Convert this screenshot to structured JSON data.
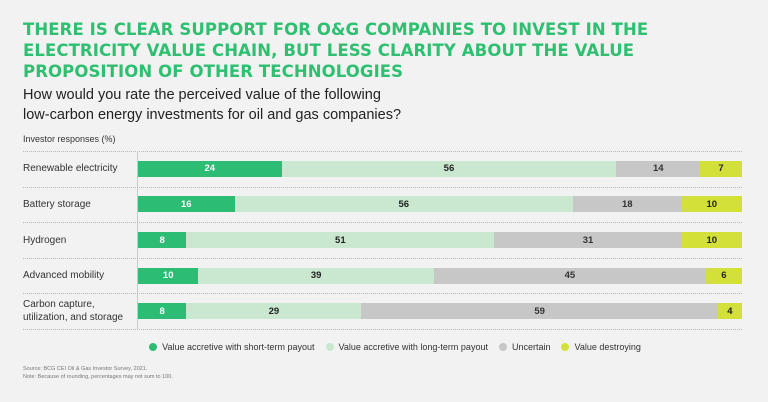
{
  "title_lines": [
    "THERE IS CLEAR SUPPORT FOR O&G COMPANIES TO INVEST IN THE",
    "ELECTRICITY VALUE CHAIN, BUT LESS CLARITY ABOUT THE VALUE",
    "PROPOSITION OF OTHER TECHNOLOGIES"
  ],
  "subtitle_lines": [
    "How would you rate the perceived value of the following",
    "low-carbon energy investments for oil and gas companies?"
  ],
  "unit_label": "Investor responses (%)",
  "legend": [
    {
      "label": "Value accretive with short-term payout",
      "color": "#2dbc74"
    },
    {
      "label": "Value accretive with long-term payout",
      "color": "#c9e8cf"
    },
    {
      "label": "Uncertain",
      "color": "#c7c7c7"
    },
    {
      "label": "Value destroying",
      "color": "#d4e03a"
    }
  ],
  "footnotes": [
    "Source: BCG CEI Oil & Gas Investor Survey, 2021.",
    "Note: Because of rounding, percentages may not sum to 100."
  ],
  "chart_data": {
    "type": "bar",
    "orientation": "horizontal",
    "stacked": true,
    "title": "THERE IS CLEAR SUPPORT FOR O&G COMPANIES TO INVEST IN THE ELECTRICITY VALUE CHAIN, BUT LESS CLARITY ABOUT THE VALUE PROPOSITION OF OTHER TECHNOLOGIES",
    "subtitle": "How would you rate the perceived value of the following low-carbon energy investments for oil and gas companies?",
    "xlabel": "Investor responses (%)",
    "ylabel": "",
    "categories": [
      [
        "Renewable electricity"
      ],
      [
        "Battery storage"
      ],
      [
        "Hydrogen"
      ],
      [
        "Advanced mobility"
      ],
      [
        "Carbon capture,",
        "utilization, and storage"
      ]
    ],
    "series": [
      {
        "name": "Value accretive with short-term payout",
        "color": "#2dbc74",
        "text_color": "#ffffff",
        "values": [
          24,
          16,
          8,
          10,
          8
        ]
      },
      {
        "name": "Value accretive with long-term payout",
        "color": "#c9e8cf",
        "text_color": "#222222",
        "values": [
          56,
          56,
          51,
          39,
          29
        ]
      },
      {
        "name": "Uncertain",
        "color": "#c7c7c7",
        "text_color": "#333333",
        "values": [
          14,
          18,
          31,
          45,
          59
        ]
      },
      {
        "name": "Value destroying",
        "color": "#d4e03a",
        "text_color": "#222222",
        "values": [
          7,
          10,
          10,
          6,
          4
        ]
      }
    ],
    "legend_position": "bottom",
    "grid": false
  }
}
